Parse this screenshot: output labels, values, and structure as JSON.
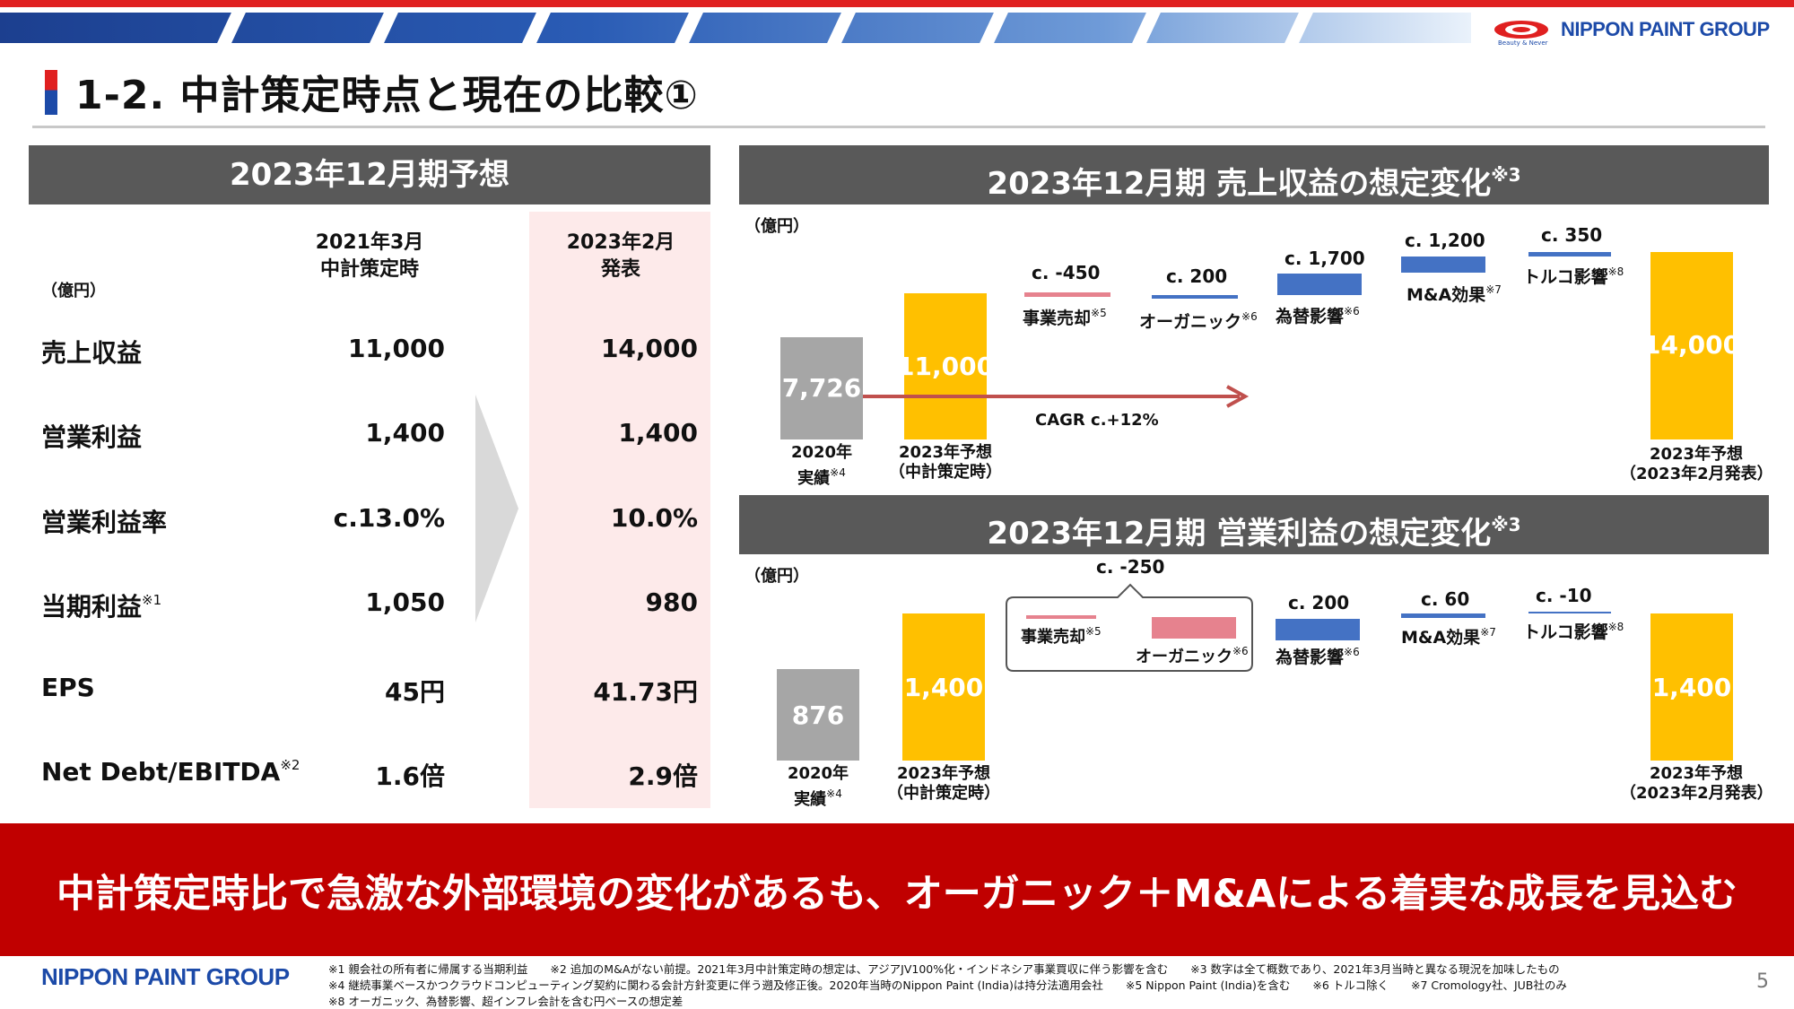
{
  "brand": {
    "name": "NIPPON PAINT GROUP",
    "tagline": "Beauty & Never"
  },
  "title": "1-2. 中計策定時点と現在の比較①",
  "left_panel": {
    "header": "2023年12月期予想",
    "unit": "（億円）",
    "col_a": [
      "2021年3月",
      "中計策定時"
    ],
    "col_b": [
      "2023年2月",
      "発表"
    ],
    "rows": [
      {
        "label": "売上収益",
        "note": "",
        "a": "11,000",
        "b": "14,000"
      },
      {
        "label": "営業利益",
        "note": "",
        "a": "1,400",
        "b": "1,400"
      },
      {
        "label": "営業利益率",
        "note": "",
        "a": "c.13.0%",
        "b": "10.0%"
      },
      {
        "label": "当期利益",
        "note": "※1",
        "a": "1,050",
        "b": "980"
      },
      {
        "label": "EPS",
        "note": "",
        "a": "45円",
        "b": "41.73円"
      },
      {
        "label": "Net Debt/EBITDA",
        "note": "※2",
        "a": "1.6倍",
        "b": "2.9倍"
      }
    ]
  },
  "revenue_panel": {
    "header": "2023年12月期 売上収益の想定変化",
    "header_note": "※3",
    "unit": "（億円）",
    "cagr": "CAGR c.+12%",
    "bars": [
      {
        "value": "7,726",
        "label": [
          "2020年",
          "実績"
        ],
        "note": "※4"
      },
      {
        "value": "11,000",
        "label": [
          "2023年予想",
          "（中計策定時）"
        ]
      },
      {
        "value": "14,000",
        "label": [
          "2023年予想",
          "（2023年2月発表）"
        ]
      }
    ],
    "changes": [
      {
        "delta": "c. -450",
        "label": "事業売却",
        "note": "※5"
      },
      {
        "delta": "c. 200",
        "label": "オーガニック",
        "note": "※6"
      },
      {
        "delta": "c. 1,700",
        "label": "為替影響",
        "note": "※6"
      },
      {
        "delta": "c. 1,200",
        "label": "M&A効果",
        "note": "※7"
      },
      {
        "delta": "c. 350",
        "label": "トルコ影響",
        "note": "※8"
      }
    ]
  },
  "op_panel": {
    "header": "2023年12月期 営業利益の想定変化",
    "header_note": "※3",
    "unit": "（億円）",
    "bars": [
      {
        "value": "876",
        "label": [
          "2020年",
          "実績"
        ],
        "note": "※4"
      },
      {
        "value": "1,400",
        "label": [
          "2023年予想",
          "（中計策定時）"
        ]
      },
      {
        "value": "1,400",
        "label": [
          "2023年予想",
          "（2023年2月発表）"
        ]
      }
    ],
    "group_delta": "c. -250",
    "changes": [
      {
        "delta": "",
        "label": "事業売却",
        "note": "※5"
      },
      {
        "delta": "",
        "label": "オーガニック",
        "note": "※6"
      },
      {
        "delta": "c. 200",
        "label": "為替影響",
        "note": "※6"
      },
      {
        "delta": "c. 60",
        "label": "M&A効果",
        "note": "※7"
      },
      {
        "delta": "c. -10",
        "label": "トルコ影響",
        "note": "※8"
      }
    ]
  },
  "banner": "中計策定時比で急激な外部環境の変化があるも、オーガニック＋M&Aによる着実な成長を見込む",
  "footnotes": [
    "※1 親会社の所有者に帰属する当期利益　　※2 追加のM&Aがない前提。2021年3月中計策定時の想定は、アジアJV100%化・インドネシア事業買収に伴う影響を含む　　※3 数字は全て概数であり、2021年3月当時と異なる現況を加味したもの",
    "※4 継続事業ベースかつクラウドコンピューティング契約に関わる会計方針変更に伴う遡及修正後。2020年当時のNippon Paint (India)は持分法適用会社　　※5 Nippon Paint (India)を含む　　※6 トルコ除く　　※7 Cromology社、JUB社のみ",
    "※8 オーガニック、為替影響、超インフレ会計を含む円ベースの想定差"
  ],
  "page_number": "5",
  "colors": {
    "accent_red": "#c00000",
    "brand_blue": "#1c4aa8",
    "bar_yellow": "#ffc000",
    "bar_blue": "#4472c4",
    "bar_pink": "#e6828e",
    "bar_gray": "#a6a6a6"
  }
}
